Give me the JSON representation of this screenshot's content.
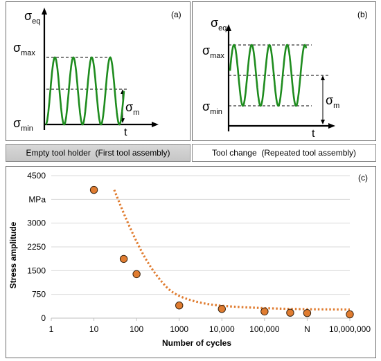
{
  "panel_a": {
    "label": "(a)",
    "y_axis_symbol": "σ",
    "y_axis_sub": "eq",
    "max_symbol": "σ",
    "max_sub": "max",
    "min_symbol": "σ",
    "min_sub": "min",
    "mean_symbol": "σ",
    "mean_sub": "m",
    "x_axis_label": "t",
    "caption": "Empty tool holder  (First tool assembly)"
  },
  "panel_b": {
    "label": "(b)",
    "y_axis_symbol": "σ",
    "y_axis_sub": "eq",
    "max_symbol": "σ",
    "max_sub": "max",
    "min_symbol": "σ",
    "min_sub": "min",
    "mean_symbol": "σ",
    "mean_sub": "m",
    "x_axis_label": "t",
    "caption": "Tool change  (Repeated tool assembly)"
  },
  "colors": {
    "wave": "#1e8c1e",
    "points_fill": "#e07c30",
    "points_stroke": "#3a2410",
    "trend": "#e07c30",
    "grid": "#d9d9d9"
  },
  "chart_data": {
    "type": "scatter",
    "label": "(c)",
    "title": "",
    "xlabel": "Number of cycles",
    "ylabel": "Stress amplitude",
    "x_scale": "log",
    "xlim": [
      1,
      10000000
    ],
    "ylim": [
      0,
      4500
    ],
    "x_ticks": [
      {
        "value": 1,
        "label": "1"
      },
      {
        "value": 10,
        "label": "10"
      },
      {
        "value": 100,
        "label": "100"
      },
      {
        "value": 1000,
        "label": "1000"
      },
      {
        "value": 10000,
        "label": "10,000"
      },
      {
        "value": 100000,
        "label": "100,000"
      },
      {
        "value": 1000000,
        "label": "N"
      },
      {
        "value": 10000000,
        "label": "10,000,000"
      }
    ],
    "y_ticks": [
      {
        "value": 0,
        "label": "0"
      },
      {
        "value": 750,
        "label": "750"
      },
      {
        "value": 1500,
        "label": "1500"
      },
      {
        "value": 2250,
        "label": "2250"
      },
      {
        "value": 3000,
        "label": "3000"
      },
      {
        "value": 3750,
        "label": "MPa"
      },
      {
        "value": 4500,
        "label": "4500"
      }
    ],
    "horizontal_grid": true,
    "points": [
      {
        "x": 10,
        "y": 4050
      },
      {
        "x": 50,
        "y": 1870
      },
      {
        "x": 100,
        "y": 1390
      },
      {
        "x": 1000,
        "y": 400
      },
      {
        "x": 10000,
        "y": 290
      },
      {
        "x": 100000,
        "y": 210
      },
      {
        "x": 400000,
        "y": 170
      },
      {
        "x": 1000000,
        "y": 160
      },
      {
        "x": 10000000,
        "y": 120
      }
    ],
    "trendline": {
      "style": "dotted",
      "x": [
        30,
        50,
        100,
        200,
        500,
        1000,
        3000,
        10000,
        100000,
        1000000,
        10000000
      ],
      "y": [
        4050,
        3300,
        2400,
        1650,
        950,
        680,
        480,
        380,
        310,
        280,
        270
      ]
    }
  }
}
